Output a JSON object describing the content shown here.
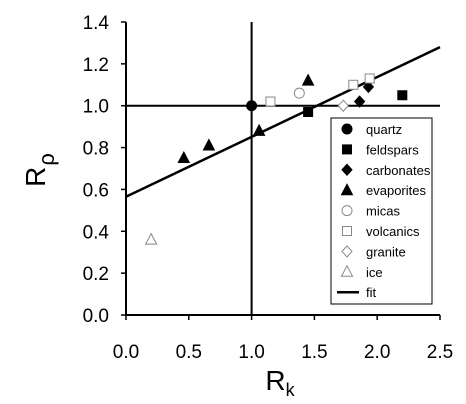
{
  "chart_data": {
    "type": "scatter",
    "title": "",
    "xlabel": "R",
    "xlabel_sub": "k",
    "ylabel": "R",
    "ylabel_greek": "ρ",
    "xlim": [
      0,
      2.5
    ],
    "ylim": [
      0,
      1.4
    ],
    "xticks": [
      "0.0",
      "0.5",
      "1.0",
      "1.5",
      "2.0",
      "2.5"
    ],
    "yticks": [
      "0.0",
      "0.2",
      "0.4",
      "0.6",
      "0.8",
      "1.0",
      "1.2",
      "1.4"
    ],
    "grid": false,
    "legend_position": "bottom-right",
    "reference_lines": {
      "x": 1.0,
      "y": 1.0
    },
    "series": [
      {
        "name": "quartz",
        "marker": "filled-circle",
        "points": [
          [
            1.0,
            1.0
          ]
        ]
      },
      {
        "name": "feldspars",
        "marker": "filled-square",
        "points": [
          [
            1.45,
            0.97
          ],
          [
            2.2,
            1.05
          ]
        ]
      },
      {
        "name": "carbonates",
        "marker": "filled-diamond",
        "points": [
          [
            1.86,
            1.02
          ],
          [
            1.93,
            1.09
          ]
        ]
      },
      {
        "name": "evaporites",
        "marker": "filled-triangle",
        "points": [
          [
            0.46,
            0.75
          ],
          [
            0.66,
            0.81
          ],
          [
            1.06,
            0.88
          ],
          [
            1.45,
            1.12
          ]
        ]
      },
      {
        "name": "micas",
        "marker": "open-circle",
        "points": [
          [
            1.38,
            1.06
          ]
        ]
      },
      {
        "name": "volcanics",
        "marker": "open-square",
        "points": [
          [
            1.15,
            1.02
          ],
          [
            1.81,
            1.1
          ],
          [
            1.94,
            1.13
          ]
        ]
      },
      {
        "name": "granite",
        "marker": "open-diamond",
        "points": [
          [
            1.73,
            1.0
          ]
        ]
      },
      {
        "name": "ice",
        "marker": "open-triangle",
        "points": [
          [
            0.2,
            0.36
          ]
        ]
      }
    ],
    "fit": {
      "name": "fit",
      "line": [
        [
          0.0,
          0.565
        ],
        [
          2.5,
          1.28
        ]
      ]
    }
  }
}
